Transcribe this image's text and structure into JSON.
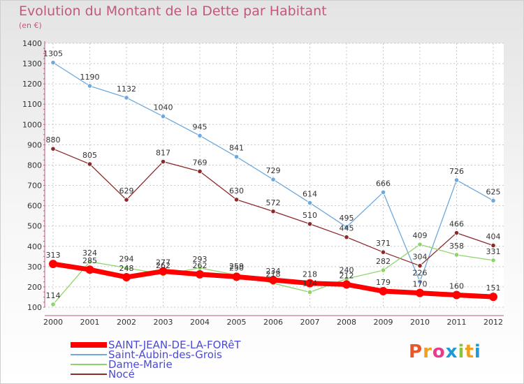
{
  "title": "Evolution du Montant de la Dette par Habitant",
  "subtitle": "(en €)",
  "logo_text": "Proxiti",
  "logo_colors": [
    "#e8562a",
    "#f0a020",
    "#e63c8c",
    "#1e9ad6",
    "#8ac43f",
    "#f0a020",
    "#1e9ad6"
  ],
  "chart_data": {
    "type": "line",
    "title": "Evolution du Montant de la Dette par Habitant",
    "subtitle": "(en €)",
    "x": [
      "2000",
      "2001",
      "2002",
      "2003",
      "2004",
      "2005",
      "2006",
      "2007",
      "2008",
      "2009",
      "2010",
      "2011",
      "2012"
    ],
    "ylim": [
      100,
      1400
    ],
    "yticks": [
      100,
      200,
      300,
      400,
      500,
      600,
      700,
      800,
      900,
      1000,
      1100,
      1200,
      1300,
      1400
    ],
    "grid": true,
    "legend_position": "bottom-left",
    "series": [
      {
        "name": "SAINT-JEAN-DE-LA-FORêT",
        "color": "#ff0000",
        "values": [
          313,
          285,
          248,
          277,
          262,
          250,
          234,
          218,
          212,
          179,
          170,
          160,
          151
        ]
      },
      {
        "name": "Saint-Aubin-des-Grois",
        "color": "#6fa8dc",
        "values": [
          1305,
          1190,
          1132,
          1040,
          945,
          841,
          729,
          614,
          495,
          666,
          226,
          726,
          625
        ]
      },
      {
        "name": "Dame-Marie",
        "color": "#8fd46a",
        "values": [
          114,
          324,
          294,
          262,
          293,
          259,
          218,
          174,
          240,
          282,
          409,
          358,
          331
        ]
      },
      {
        "name": "Nocé",
        "color": "#8b2a2a",
        "values": [
          880,
          805,
          629,
          817,
          769,
          630,
          572,
          510,
          445,
          371,
          304,
          466,
          404
        ]
      }
    ]
  }
}
